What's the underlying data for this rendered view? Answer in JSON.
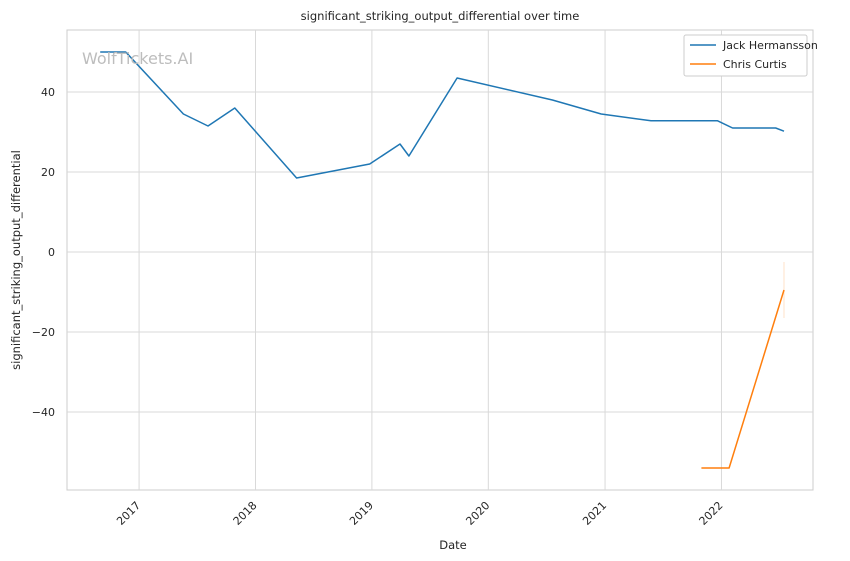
{
  "chart_data": {
    "type": "line",
    "title": "significant_striking_output_differential over time",
    "xlabel": "Date",
    "ylabel": "significant_striking_output_differential",
    "watermark": "WolfTickets.AI",
    "x_range": [
      "2016-05-20",
      "2022-10-15"
    ],
    "ylim": [
      -59.5,
      55.5
    ],
    "x_ticks": [
      "2017",
      "2018",
      "2019",
      "2020",
      "2021",
      "2022"
    ],
    "y_ticks": [
      -40,
      -20,
      0,
      20,
      40
    ],
    "y_tick_labels": [
      "−40",
      "−20",
      "0",
      "20",
      "40"
    ],
    "grid": true,
    "legend": "top-right",
    "series": [
      {
        "name": "Jack Hermansson",
        "color": "#1f77b4",
        "points": [
          [
            "2016-09-01",
            50.0
          ],
          [
            "2016-11-20",
            50.0
          ],
          [
            "2017-05-20",
            34.5
          ],
          [
            "2017-08-05",
            31.5
          ],
          [
            "2017-10-28",
            36.0
          ],
          [
            "2018-05-10",
            18.5
          ],
          [
            "2018-12-25",
            22.0
          ],
          [
            "2019-03-30",
            27.0
          ],
          [
            "2019-04-27",
            24.0
          ],
          [
            "2019-09-25",
            43.5
          ],
          [
            "2020-07-20",
            38.0
          ],
          [
            "2020-12-20",
            34.5
          ],
          [
            "2021-05-25",
            32.8
          ],
          [
            "2021-12-20",
            32.8
          ],
          [
            "2022-02-05",
            31.0
          ],
          [
            "2022-06-20",
            31.0
          ],
          [
            "2022-07-16",
            30.2
          ]
        ]
      },
      {
        "name": "Chris Curtis",
        "color": "#ff7f0e",
        "points": [
          [
            "2021-10-30",
            -54.0
          ],
          [
            "2022-01-25",
            -54.0
          ],
          [
            "2022-07-16",
            -9.5
          ]
        ]
      }
    ]
  }
}
